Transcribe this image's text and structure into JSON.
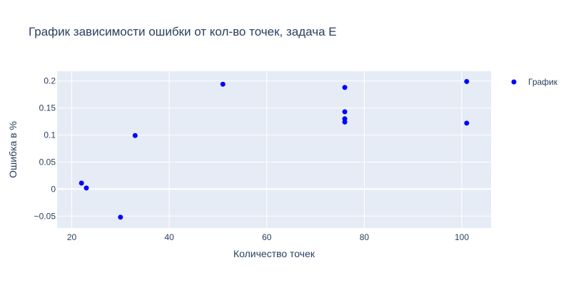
{
  "chart_data": {
    "type": "scatter",
    "title": "График зависимости ошибки от кол-во точек, задача E",
    "xlabel": "Количество точек",
    "ylabel": "Ошибка в %",
    "xlim": [
      17,
      106
    ],
    "ylim": [
      -0.072,
      0.218
    ],
    "x_ticks": [
      20,
      40,
      60,
      80,
      100
    ],
    "y_ticks": [
      -0.05,
      0,
      0.05,
      0.1,
      0.15,
      0.2
    ],
    "x_tick_labels": [
      "20",
      "40",
      "60",
      "80",
      "100"
    ],
    "y_tick_labels": [
      "−0.05",
      "0",
      "0.05",
      "0.1",
      "0.15",
      "0.2"
    ],
    "grid": true,
    "legend_position": "top-right",
    "background_color": "#e5ecf6",
    "series": [
      {
        "name": "График",
        "color": "#0000ff",
        "points": [
          {
            "x": 22,
            "y": 0.011
          },
          {
            "x": 23,
            "y": 0.002
          },
          {
            "x": 30,
            "y": -0.052
          },
          {
            "x": 33,
            "y": 0.099
          },
          {
            "x": 51,
            "y": 0.194
          },
          {
            "x": 76,
            "y": 0.188
          },
          {
            "x": 76,
            "y": 0.143
          },
          {
            "x": 76,
            "y": 0.13
          },
          {
            "x": 76,
            "y": 0.124
          },
          {
            "x": 101,
            "y": 0.199
          },
          {
            "x": 101,
            "y": 0.122
          }
        ]
      }
    ]
  }
}
